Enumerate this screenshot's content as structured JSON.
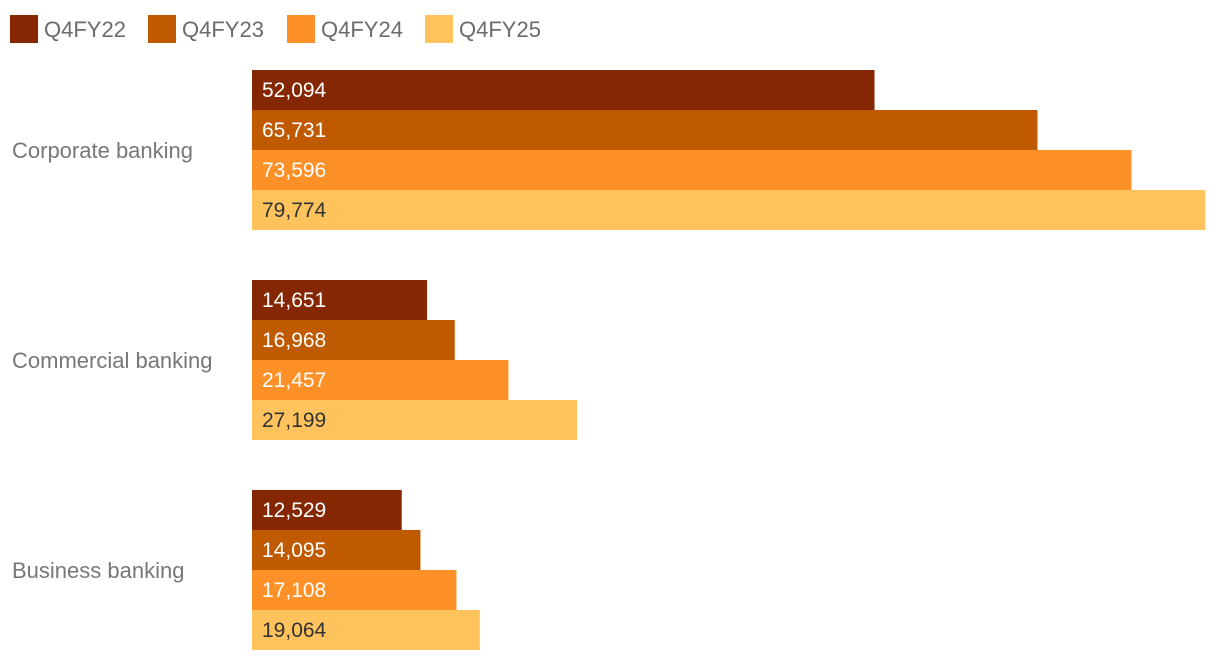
{
  "chart_data": {
    "type": "bar",
    "orientation": "horizontal",
    "categories": [
      "Corporate banking",
      "Commercial banking",
      "Business banking"
    ],
    "series": [
      {
        "name": "Q4FY22",
        "color": "#842702",
        "values": [
          52094,
          14651,
          12529
        ]
      },
      {
        "name": "Q4FY23",
        "color": "#BF5A01",
        "values": [
          65731,
          16968,
          14095
        ]
      },
      {
        "name": "Q4FY24",
        "color": "#FD9026",
        "values": [
          73596,
          21457,
          17108
        ]
      },
      {
        "name": "Q4FY25",
        "color": "#FFC35D",
        "values": [
          79774,
          27199,
          19064
        ]
      }
    ],
    "value_labels": [
      [
        "52,094",
        "14,651",
        "12,529"
      ],
      [
        "65,731",
        "16,968",
        "14,095"
      ],
      [
        "73,596",
        "21,457",
        "17,108"
      ],
      [
        "79,774",
        "27,199",
        "19,064"
      ]
    ],
    "label_colors": [
      "#ffffff",
      "#ffffff",
      "#ffffff",
      "#333333"
    ],
    "xlim": [
      0,
      80000
    ],
    "grid": false,
    "legend_position": "top-left",
    "title": "",
    "xlabel": "",
    "ylabel": ""
  }
}
